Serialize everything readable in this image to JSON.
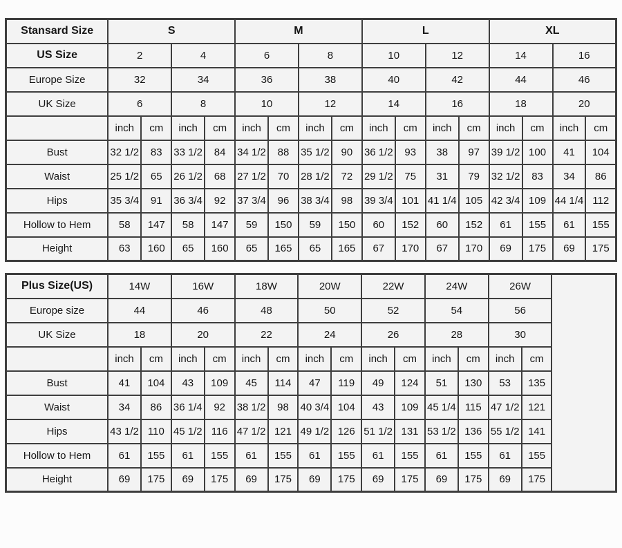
{
  "theme": {
    "page_bg": "#fcfcfc",
    "cell_bg": "#f3f3f3",
    "border_color": "#3e3e3e",
    "text_color": "#161616"
  },
  "chart_data": [
    {
      "type": "table",
      "title": "Stansard Size",
      "corner_label": "Stansard Size",
      "groups_bold": true,
      "unit_labels": [
        "inch",
        "cm"
      ],
      "size_groups": [
        {
          "label": "S",
          "pairs": 2
        },
        {
          "label": "M",
          "pairs": 2
        },
        {
          "label": "L",
          "pairs": 2
        },
        {
          "label": "XL",
          "pairs": 2
        }
      ],
      "size_rows": [
        {
          "label": "US Size",
          "label_bold": true,
          "values": [
            "2",
            "4",
            "6",
            "8",
            "10",
            "12",
            "14",
            "16"
          ]
        },
        {
          "label": "Europe Size",
          "label_bold": false,
          "values": [
            "32",
            "34",
            "36",
            "38",
            "40",
            "42",
            "44",
            "46"
          ]
        },
        {
          "label": "UK Size",
          "label_bold": false,
          "values": [
            "6",
            "8",
            "10",
            "12",
            "14",
            "16",
            "18",
            "20"
          ]
        }
      ],
      "measure_rows": [
        {
          "label": "Bust",
          "values": [
            "32 1/2",
            "83",
            "33 1/2",
            "84",
            "34 1/2",
            "88",
            "35 1/2",
            "90",
            "36 1/2",
            "93",
            "38",
            "97",
            "39 1/2",
            "100",
            "41",
            "104"
          ]
        },
        {
          "label": "Waist",
          "values": [
            "25 1/2",
            "65",
            "26 1/2",
            "68",
            "27 1/2",
            "70",
            "28 1/2",
            "72",
            "29 1/2",
            "75",
            "31",
            "79",
            "32 1/2",
            "83",
            "34",
            "86"
          ]
        },
        {
          "label": "Hips",
          "values": [
            "35 3/4",
            "91",
            "36 3/4",
            "92",
            "37 3/4",
            "96",
            "38 3/4",
            "98",
            "39 3/4",
            "101",
            "41 1/4",
            "105",
            "42 3/4",
            "109",
            "44 1/4",
            "112"
          ]
        },
        {
          "label": "Hollow to Hem",
          "values": [
            "58",
            "147",
            "58",
            "147",
            "59",
            "150",
            "59",
            "150",
            "60",
            "152",
            "60",
            "152",
            "61",
            "155",
            "61",
            "155"
          ]
        },
        {
          "label": "Height",
          "values": [
            "63",
            "160",
            "65",
            "160",
            "65",
            "165",
            "65",
            "165",
            "67",
            "170",
            "67",
            "170",
            "69",
            "175",
            "69",
            "175"
          ]
        }
      ],
      "trailing_empty_column": false
    },
    {
      "type": "table",
      "title": "Plus Size(US)",
      "corner_label": "Plus Size(US)",
      "groups_bold": false,
      "unit_labels": [
        "inch",
        "cm"
      ],
      "size_groups": [
        {
          "label": "14W",
          "pairs": 1
        },
        {
          "label": "16W",
          "pairs": 1
        },
        {
          "label": "18W",
          "pairs": 1
        },
        {
          "label": "20W",
          "pairs": 1
        },
        {
          "label": "22W",
          "pairs": 1
        },
        {
          "label": "24W",
          "pairs": 1
        },
        {
          "label": "26W",
          "pairs": 1
        }
      ],
      "size_rows": [
        {
          "label": "Europe size",
          "label_bold": false,
          "values": [
            "44",
            "46",
            "48",
            "50",
            "52",
            "54",
            "56"
          ]
        },
        {
          "label": "UK Size",
          "label_bold": false,
          "values": [
            "18",
            "20",
            "22",
            "24",
            "26",
            "28",
            "30"
          ]
        }
      ],
      "measure_rows": [
        {
          "label": "Bust",
          "values": [
            "41",
            "104",
            "43",
            "109",
            "45",
            "114",
            "47",
            "119",
            "49",
            "124",
            "51",
            "130",
            "53",
            "135"
          ]
        },
        {
          "label": "Waist",
          "values": [
            "34",
            "86",
            "36 1/4",
            "92",
            "38 1/2",
            "98",
            "40 3/4",
            "104",
            "43",
            "109",
            "45 1/4",
            "115",
            "47 1/2",
            "121"
          ]
        },
        {
          "label": "Hips",
          "values": [
            "43 1/2",
            "110",
            "45 1/2",
            "116",
            "47 1/2",
            "121",
            "49 1/2",
            "126",
            "51 1/2",
            "131",
            "53 1/2",
            "136",
            "55 1/2",
            "141"
          ]
        },
        {
          "label": "Hollow to Hem",
          "values": [
            "61",
            "155",
            "61",
            "155",
            "61",
            "155",
            "61",
            "155",
            "61",
            "155",
            "61",
            "155",
            "61",
            "155"
          ]
        },
        {
          "label": "Height",
          "values": [
            "69",
            "175",
            "69",
            "175",
            "69",
            "175",
            "69",
            "175",
            "69",
            "175",
            "69",
            "175",
            "69",
            "175"
          ]
        }
      ],
      "trailing_empty_column": true
    }
  ]
}
